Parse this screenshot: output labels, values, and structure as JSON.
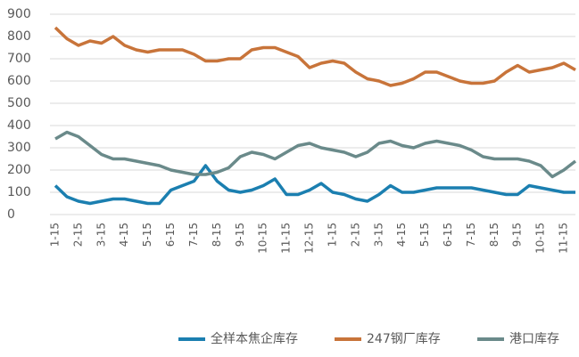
{
  "chart_data": {
    "type": "line",
    "categories": [
      "1-15",
      null,
      "2-15",
      null,
      "3-15",
      null,
      "4-15",
      null,
      "5-15",
      null,
      "6-15",
      null,
      "7-15",
      null,
      "8-15",
      null,
      "9-15",
      null,
      "10-15",
      null,
      "11-15",
      null,
      "12-15",
      null,
      "1-15",
      null,
      "2-15",
      null,
      "3-15",
      null,
      "4-15",
      null,
      "5-15",
      null,
      "6-15",
      null,
      "7-15",
      null,
      "8-15",
      null,
      "9-15",
      null,
      "10-15",
      null,
      "11-15",
      null
    ],
    "series": [
      {
        "name": "全样本焦企库存",
        "color": "#1b7fb0",
        "values": [
          130,
          80,
          60,
          50,
          60,
          70,
          70,
          60,
          50,
          50,
          110,
          130,
          150,
          220,
          150,
          110,
          100,
          110,
          130,
          160,
          90,
          90,
          110,
          140,
          100,
          90,
          70,
          60,
          90,
          130,
          100,
          100,
          110,
          120,
          120,
          120,
          120,
          110,
          100,
          90,
          90,
          130,
          120,
          110,
          100,
          100
        ]
      },
      {
        "name": "247钢厂库存",
        "color": "#c8743a",
        "values": [
          840,
          790,
          760,
          780,
          770,
          800,
          760,
          740,
          730,
          740,
          740,
          740,
          720,
          690,
          690,
          700,
          700,
          740,
          750,
          750,
          730,
          710,
          660,
          680,
          690,
          680,
          640,
          610,
          600,
          580,
          590,
          610,
          640,
          640,
          620,
          600,
          590,
          590,
          600,
          640,
          670,
          640,
          650,
          660,
          680,
          650
        ]
      },
      {
        "name": "港口库存",
        "color": "#6a8a8a",
        "values": [
          340,
          370,
          350,
          310,
          270,
          250,
          250,
          240,
          230,
          220,
          200,
          190,
          180,
          180,
          190,
          210,
          260,
          280,
          270,
          250,
          280,
          310,
          320,
          300,
          290,
          280,
          260,
          280,
          320,
          330,
          310,
          300,
          320,
          330,
          320,
          310,
          290,
          260,
          250,
          250,
          250,
          240,
          220,
          170,
          200,
          240
        ]
      }
    ],
    "ylim": [
      0,
      900
    ],
    "yticks": [
      0,
      100,
      200,
      300,
      400,
      500,
      600,
      700,
      800,
      900
    ],
    "grid": true,
    "legend": "bottom"
  }
}
